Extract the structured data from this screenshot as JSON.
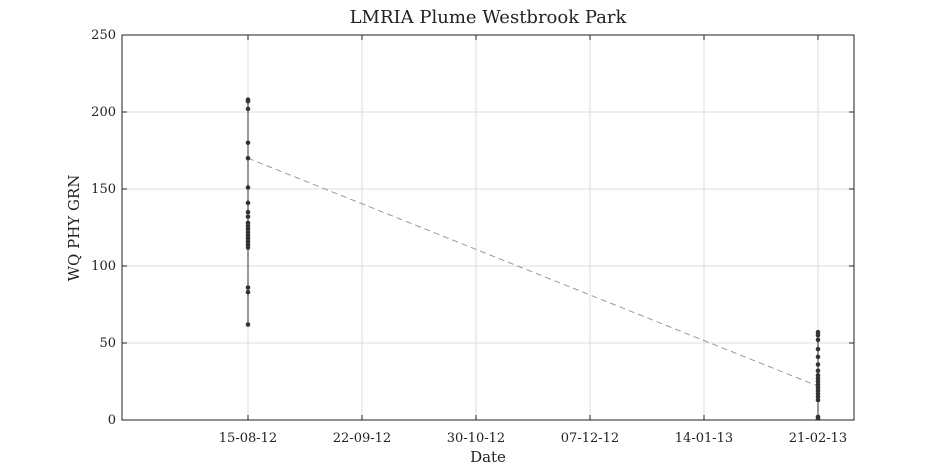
{
  "chart_data": {
    "type": "scatter",
    "title": "LMRIA Plume Westbrook Park",
    "xlabel": "Date",
    "ylabel": "WQ PHY GRN",
    "ylim": [
      0,
      250
    ],
    "yticks": [
      0,
      50,
      100,
      150,
      200,
      250
    ],
    "xlim": [
      "2012-07-04",
      "2013-03-05"
    ],
    "xticks": [
      {
        "date": "2012-08-15",
        "label": "15-08-12"
      },
      {
        "date": "2012-09-22",
        "label": "22-09-12"
      },
      {
        "date": "2012-10-30",
        "label": "30-10-12"
      },
      {
        "date": "2012-12-07",
        "label": "07-12-12"
      },
      {
        "date": "2013-01-14",
        "label": "14-01-13"
      },
      {
        "date": "2013-02-21",
        "label": "21-02-13"
      }
    ],
    "grid": true,
    "series": [
      {
        "x": "2012-08-15",
        "values": [
          208,
          207,
          202,
          180,
          170,
          151,
          141,
          135,
          132,
          128,
          126,
          124,
          122,
          120,
          118,
          116,
          114,
          112,
          86,
          83,
          62
        ]
      },
      {
        "x": "2013-02-21",
        "values": [
          57,
          55,
          52,
          46,
          41,
          36,
          32,
          29,
          27,
          25,
          23,
          21,
          19,
          17,
          15,
          13,
          2,
          1
        ]
      }
    ],
    "trend": {
      "style": "dashed",
      "color": "#999999",
      "points": [
        {
          "x": "2012-08-15",
          "y": 170
        },
        {
          "x": "2013-02-21",
          "y": 22
        }
      ]
    },
    "colors": {
      "points": "#333333",
      "grid": "#dddddd",
      "axes": "#222222"
    }
  }
}
